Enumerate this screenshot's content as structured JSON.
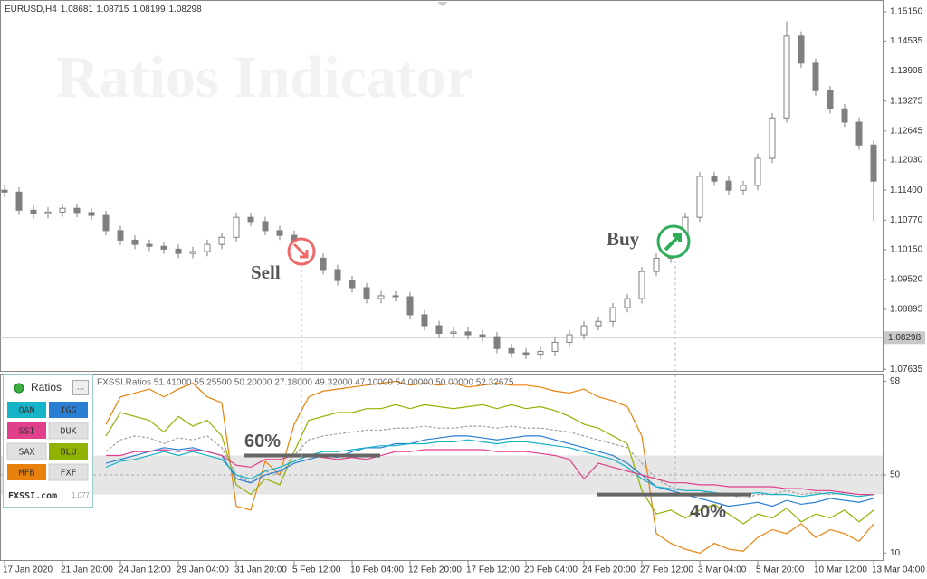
{
  "watermark": "Ratios Indicator",
  "chart_data": [
    {
      "type": "candlestick",
      "symbol": "EURUSD,H4",
      "quote": [
        1.08681,
        1.08715,
        1.08199,
        1.08298
      ],
      "color": "#7f7f7f",
      "open": [
        1.114,
        1.1136,
        1.1098,
        1.1091,
        1.1094,
        1.1102,
        1.1093,
        1.1087,
        1.1055,
        1.1035,
        1.1026,
        1.1022,
        1.1016,
        1.1007,
        1.1011,
        1.1026,
        1.1041,
        1.1083,
        1.1074,
        1.1055,
        1.1045,
        1.1026,
        1.0997,
        1.0973,
        1.095,
        1.0935,
        1.0912,
        1.0918,
        1.0916,
        1.0878,
        1.0855,
        1.0839,
        1.0842,
        1.0836,
        1.0832,
        1.0807,
        1.0798,
        1.0795,
        1.0801,
        1.082,
        1.0836,
        1.0855,
        1.0864,
        1.0893,
        1.0912,
        1.0969,
        1.0997,
        1.1026,
        1.1083,
        1.1169,
        1.1159,
        1.114,
        1.115,
        1.1207,
        1.1292,
        1.1464,
        1.1407,
        1.1349,
        1.1311,
        1.1283,
        1.1235
      ],
      "high": [
        1.115,
        1.1146,
        1.1108,
        1.1104,
        1.1112,
        1.1112,
        1.1103,
        1.1097,
        1.1065,
        1.1045,
        1.1036,
        1.1032,
        1.1026,
        1.1021,
        1.1036,
        1.1051,
        1.1093,
        1.1093,
        1.1084,
        1.1065,
        1.1055,
        1.1036,
        1.1007,
        1.0983,
        1.096,
        1.0945,
        1.0928,
        1.0928,
        1.0926,
        1.0888,
        1.0865,
        1.0852,
        1.0852,
        1.0846,
        1.0842,
        1.0817,
        1.0808,
        1.0811,
        1.083,
        1.0846,
        1.0865,
        1.0874,
        1.0903,
        1.0922,
        1.0979,
        1.1007,
        1.1036,
        1.1093,
        1.1179,
        1.1179,
        1.1169,
        1.116,
        1.1217,
        1.1302,
        1.1495,
        1.1474,
        1.1417,
        1.1359,
        1.1321,
        1.1293,
        1.1245
      ],
      "low": [
        1.1126,
        1.1088,
        1.1081,
        1.1081,
        1.1084,
        1.1083,
        1.1077,
        1.1045,
        1.1025,
        1.1016,
        1.1012,
        1.1006,
        1.0997,
        1.0997,
        1.1001,
        1.1016,
        1.1031,
        1.1064,
        1.1045,
        1.1035,
        1.1016,
        1.0987,
        1.0963,
        1.094,
        1.0925,
        1.0902,
        1.0902,
        1.0906,
        1.0868,
        1.0845,
        1.0829,
        1.0829,
        1.0826,
        1.0822,
        1.0797,
        1.0788,
        1.0785,
        1.0785,
        1.0791,
        1.081,
        1.0826,
        1.0845,
        1.0854,
        1.0883,
        1.0902,
        1.0959,
        1.0987,
        1.1016,
        1.1073,
        1.1149,
        1.113,
        1.113,
        1.114,
        1.1197,
        1.1282,
        1.1397,
        1.1339,
        1.1301,
        1.1273,
        1.1225,
        1.1076
      ],
      "close": [
        1.1136,
        1.1098,
        1.1091,
        1.1094,
        1.1102,
        1.1093,
        1.1087,
        1.1055,
        1.1035,
        1.1026,
        1.1022,
        1.1016,
        1.1007,
        1.1011,
        1.1026,
        1.1041,
        1.1083,
        1.1074,
        1.1055,
        1.1045,
        1.1026,
        1.0997,
        1.0973,
        1.095,
        1.0935,
        1.0912,
        1.0918,
        1.0916,
        1.0878,
        1.0855,
        1.0839,
        1.0842,
        1.0836,
        1.0832,
        1.0807,
        1.0798,
        1.0795,
        1.0801,
        1.082,
        1.0836,
        1.0855,
        1.0864,
        1.0893,
        1.0912,
        1.0969,
        1.0997,
        1.1026,
        1.1083,
        1.1169,
        1.1159,
        1.114,
        1.115,
        1.1207,
        1.1292,
        1.1464,
        1.1407,
        1.1349,
        1.1311,
        1.1283,
        1.1235,
        1.1159
      ],
      "ylim": [
        1.076,
        1.1536
      ],
      "yticks": [
        {
          "value": 1.1515,
          "label": "1.15150"
        },
        1.14535,
        1.13905,
        1.13275,
        1.12645,
        {
          "value": 1.1203,
          "label": "1.12030"
        },
        {
          "value": 1.114,
          "label": "1.11400"
        },
        {
          "value": 1.1077,
          "label": "1.10770"
        },
        {
          "value": 1.1015,
          "label": "1.10150"
        },
        {
          "value": 1.0952,
          "label": "1.09520"
        },
        1.08895,
        1.07635
      ],
      "current_price": 1.08298,
      "annotations": [
        "Sell",
        "Buy"
      ]
    },
    {
      "type": "line",
      "header": "FXSSI.Ratios 51.41000 55.25500 50.20000 27.18000 49.32000 47.10000 54.00000 50.00000 52.32675",
      "categories": [
        "17 Jan 2020",
        null,
        null,
        null,
        "21 Jan 20:00",
        null,
        null,
        null,
        "24 Jan 12:00",
        null,
        null,
        null,
        "29 Jan 04:00",
        null,
        null,
        null,
        "31 Jan 20:00",
        null,
        null,
        null,
        "5 Feb 12:00",
        null,
        null,
        null,
        "10 Feb 04:00",
        null,
        null,
        null,
        "12 Feb 20:00",
        null,
        null,
        null,
        "17 Feb 12:00",
        null,
        null,
        null,
        "20 Feb 04:00",
        null,
        null,
        null,
        "24 Feb 20:00",
        null,
        null,
        null,
        "27 Feb 12:00",
        null,
        null,
        null,
        "3 Mar 04:00",
        null,
        null,
        null,
        "5 Mar 20:00",
        null,
        null,
        null,
        "10 Mar 12:00",
        null,
        null,
        null,
        "13 Mar 04:00"
      ],
      "ylim": [
        6,
        101
      ],
      "yticks": [
        98,
        50,
        10
      ],
      "level": 50,
      "band": [
        40,
        60
      ],
      "band_labels": [
        "40%",
        "60%"
      ],
      "series": [
        {
          "name": "MFB",
          "color": "#e8820c",
          "values": [
            null,
            null,
            null,
            null,
            null,
            null,
            null,
            76,
            90,
            92,
            94,
            90,
            94,
            97,
            90,
            87,
            34,
            32,
            57,
            50,
            76,
            90,
            93,
            94,
            95,
            96,
            97,
            98,
            96,
            97,
            96,
            97,
            95,
            96,
            97,
            96,
            96,
            95,
            93,
            92,
            94,
            90,
            88,
            85,
            70,
            20,
            15,
            12,
            10,
            15,
            12,
            11,
            18,
            22,
            20,
            25,
            18,
            22,
            20,
            16,
            25
          ]
        },
        {
          "name": "BLU",
          "color": "#8fb300",
          "values": [
            null,
            null,
            null,
            null,
            null,
            null,
            null,
            70,
            82,
            80,
            78,
            72,
            80,
            75,
            78,
            70,
            45,
            40,
            48,
            45,
            62,
            78,
            80,
            82,
            82,
            84,
            84,
            86,
            84,
            86,
            85,
            84,
            85,
            86,
            84,
            86,
            84,
            85,
            83,
            80,
            76,
            74,
            70,
            66,
            42,
            30,
            32,
            28,
            32,
            35,
            30,
            25,
            30,
            28,
            33,
            26,
            30,
            28,
            32,
            26,
            32
          ]
        },
        {
          "color": "#a0a0a0",
          "dashed": true,
          "values": [
            null,
            null,
            null,
            null,
            null,
            null,
            null,
            62,
            68,
            70,
            69,
            66,
            69,
            68,
            70,
            64,
            50,
            46,
            52,
            50,
            60,
            68,
            70,
            71,
            72,
            73,
            73,
            74,
            74,
            75,
            74,
            74,
            75,
            75,
            74,
            75,
            74,
            74,
            73,
            72,
            70,
            68,
            66,
            64,
            56,
            48,
            44,
            42,
            42,
            40,
            40,
            38,
            40,
            40,
            42,
            40,
            41,
            40,
            41,
            40,
            40
          ]
        },
        {
          "name": "IGG",
          "color": "#2a7fd4",
          "values": [
            null,
            null,
            null,
            null,
            null,
            null,
            null,
            56,
            58,
            60,
            62,
            64,
            63,
            64,
            62,
            60,
            48,
            46,
            50,
            52,
            56,
            58,
            60,
            59,
            62,
            64,
            64,
            66,
            66,
            68,
            69,
            70,
            70,
            69,
            68,
            69,
            70,
            70,
            68,
            66,
            64,
            62,
            60,
            56,
            50,
            44,
            42,
            40,
            38,
            36,
            34,
            35,
            36,
            34,
            37,
            35,
            36,
            38,
            37,
            36,
            38
          ]
        },
        {
          "name": "OAN",
          "color": "#17b3c9",
          "values": [
            null,
            null,
            null,
            null,
            null,
            null,
            null,
            54,
            57,
            58,
            60,
            62,
            60,
            62,
            60,
            58,
            50,
            48,
            52,
            54,
            57,
            60,
            62,
            62,
            63,
            64,
            65,
            65,
            66,
            66,
            67,
            67,
            68,
            67,
            66,
            67,
            67,
            66,
            65,
            64,
            62,
            60,
            58,
            54,
            48,
            44,
            43,
            42,
            42,
            41,
            40,
            40,
            41,
            40,
            40,
            39,
            40,
            41,
            40,
            39,
            40
          ]
        },
        {
          "name": "SSI",
          "color": "#e0408a",
          "values": [
            null,
            null,
            null,
            null,
            null,
            null,
            null,
            60,
            60,
            62,
            62,
            63,
            62,
            63,
            62,
            60,
            55,
            54,
            58,
            58,
            60,
            60,
            59,
            58,
            59,
            58,
            60,
            62,
            62,
            63,
            63,
            63,
            63,
            63,
            62,
            62,
            62,
            61,
            60,
            58,
            48,
            56,
            54,
            52,
            50,
            48,
            46,
            46,
            45,
            45,
            44,
            44,
            44,
            44,
            43,
            43,
            42,
            42,
            41,
            40,
            40
          ]
        }
      ],
      "inactive_sources": [
        "DUK",
        "SAX",
        "FXF"
      ],
      "panel_title": "Ratios",
      "panel_site": "FXSSI.com",
      "panel_version": "1.077"
    }
  ]
}
